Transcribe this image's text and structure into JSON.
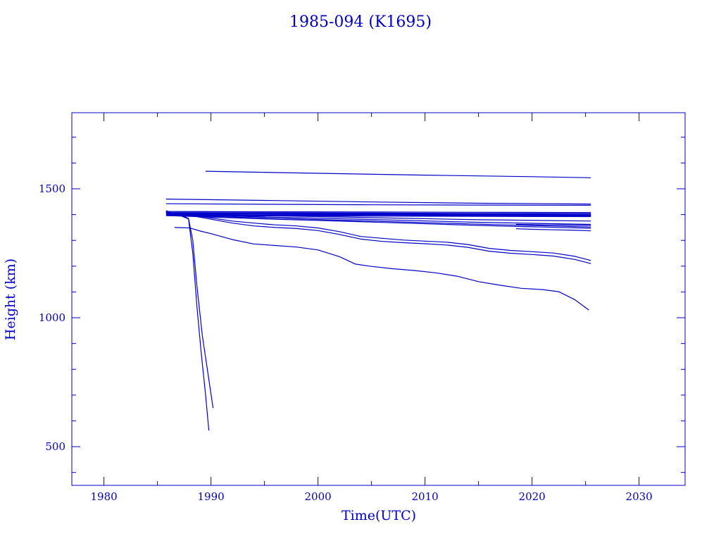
{
  "chart_data": {
    "type": "line",
    "title": "1985-094 (K1695)",
    "xlabel": "Time(UTC)",
    "ylabel": "Height (km)",
    "xlim": [
      1977,
      2034.3
    ],
    "ylim": [
      350,
      1795
    ],
    "x_major_ticks": [
      1980,
      1990,
      2000,
      2010,
      2020,
      2030
    ],
    "x_minor_ticks": [
      1985,
      1995,
      2005,
      2015,
      2025
    ],
    "y_major_ticks": [
      500,
      1000,
      1500
    ],
    "y_minor_ticks": [
      400,
      600,
      700,
      800,
      900,
      1100,
      1200,
      1300,
      1400,
      1600,
      1700
    ],
    "grid": false,
    "legend": "none",
    "line_color": "#0000c8",
    "series": [
      {
        "x": [
          1989.5,
          2000,
          2010,
          2020,
          2025.5
        ],
        "y": [
          1568,
          1560,
          1553,
          1547,
          1543
        ]
      },
      {
        "x": [
          1985.8,
          1995,
          2005,
          2015,
          2025.5
        ],
        "y": [
          1460,
          1455,
          1449,
          1444,
          1441
        ]
      },
      {
        "x": [
          1985.8,
          1995,
          2005,
          2015,
          2025.5
        ],
        "y": [
          1442,
          1440,
          1438,
          1437,
          1436
        ]
      },
      {
        "x": [
          1985.8,
          1995,
          2005,
          2015,
          2025.5
        ],
        "y": [
          1412,
          1411,
          1410,
          1409,
          1408
        ]
      },
      {
        "x": [
          1985.8,
          1995,
          2005,
          2015,
          2025.5
        ],
        "y": [
          1408,
          1407,
          1406,
          1405,
          1404
        ]
      },
      {
        "x": [
          1985.8,
          1995,
          2005,
          2015,
          2025.5
        ],
        "y": [
          1405,
          1404,
          1403,
          1402,
          1401
        ]
      },
      {
        "x": [
          1985.8,
          1995,
          2005,
          2015,
          2025.5
        ],
        "y": [
          1402,
          1401,
          1400,
          1399,
          1398
        ]
      },
      {
        "x": [
          1985.8,
          1995,
          2005,
          2015,
          2025.5
        ],
        "y": [
          1399,
          1398,
          1397,
          1396,
          1395
        ]
      },
      {
        "x": [
          1985.8,
          1995,
          2005,
          2015,
          2025.5
        ],
        "y": [
          1396,
          1395,
          1394,
          1393,
          1392
        ]
      },
      {
        "x": [
          1985.8,
          1995,
          2005,
          2015,
          2025.5
        ],
        "y": [
          1407,
          1405,
          1402,
          1399,
          1396
        ]
      },
      {
        "x": [
          1986,
          1995,
          2005,
          2015,
          2025.5
        ],
        "y": [
          1403,
          1396,
          1388,
          1380,
          1375
        ]
      },
      {
        "x": [
          1986,
          1995,
          2005,
          2015,
          2025.5
        ],
        "y": [
          1400,
          1391,
          1381,
          1370,
          1362
        ]
      },
      {
        "x": [
          1986,
          1995,
          2005,
          2015,
          2025.5
        ],
        "y": [
          1398,
          1387,
          1375,
          1363,
          1352
        ]
      },
      {
        "x": [
          1986,
          1995,
          2005,
          2015,
          2025.5
        ],
        "y": [
          1396,
          1383,
          1371,
          1358,
          1347
        ]
      },
      {
        "x": [
          2018.5,
          2020,
          2022,
          2024,
          2025.5
        ],
        "y": [
          1362,
          1361,
          1360,
          1359,
          1358
        ]
      },
      {
        "x": [
          2018.5,
          2020,
          2022,
          2024,
          2025.5
        ],
        "y": [
          1345,
          1343,
          1341,
          1339,
          1337
        ]
      },
      {
        "x": [
          1986,
          1988,
          1990,
          1992,
          1994,
          1996,
          1998,
          2000,
          2002,
          2004,
          2006,
          2008,
          2010,
          2012,
          2014,
          2016,
          2018,
          2020,
          2022,
          2024,
          2025.5
        ],
        "y": [
          1405,
          1398,
          1387,
          1375,
          1367,
          1360,
          1356,
          1348,
          1334,
          1315,
          1308,
          1301,
          1297,
          1293,
          1284,
          1269,
          1261,
          1256,
          1251,
          1238,
          1222
        ]
      },
      {
        "x": [
          1986,
          1988,
          1990,
          1992,
          1994,
          1996,
          1998,
          2000,
          2002,
          2004,
          2006,
          2008,
          2010,
          2012,
          2014,
          2016,
          2018,
          2020,
          2022,
          2024,
          2025.5
        ],
        "y": [
          1408,
          1397,
          1382,
          1367,
          1356,
          1350,
          1346,
          1338,
          1323,
          1305,
          1296,
          1291,
          1287,
          1282,
          1273,
          1258,
          1250,
          1245,
          1239,
          1226,
          1210
        ]
      },
      {
        "x": [
          1986.6,
          1988,
          1989,
          1990,
          1992,
          1994,
          1996,
          1998,
          2000,
          2002,
          2003.5,
          2005,
          2007,
          2009,
          2011,
          2013,
          2015,
          2017,
          2019,
          2021,
          2022.5,
          2024,
          2025.3
        ],
        "y": [
          1350,
          1348,
          1336,
          1326,
          1303,
          1286,
          1280,
          1274,
          1263,
          1237,
          1208,
          1199,
          1190,
          1183,
          1174,
          1161,
          1140,
          1126,
          1114,
          1109,
          1101,
          1070,
          1030
        ]
      },
      {
        "x": [
          1985.8,
          1986.5,
          1987.2,
          1987.9,
          1988.3,
          1988.7,
          1989.1,
          1989.5,
          1989.8
        ],
        "y": [
          1412,
          1401,
          1395,
          1383,
          1250,
          1040,
          860,
          700,
          563
        ]
      },
      {
        "x": [
          1985.8,
          1986.5,
          1987.2,
          1987.9,
          1988.3,
          1988.7,
          1989.2,
          1989.7,
          1990.2
        ],
        "y": [
          1415,
          1404,
          1398,
          1385,
          1300,
          1120,
          930,
          790,
          650
        ]
      }
    ]
  }
}
